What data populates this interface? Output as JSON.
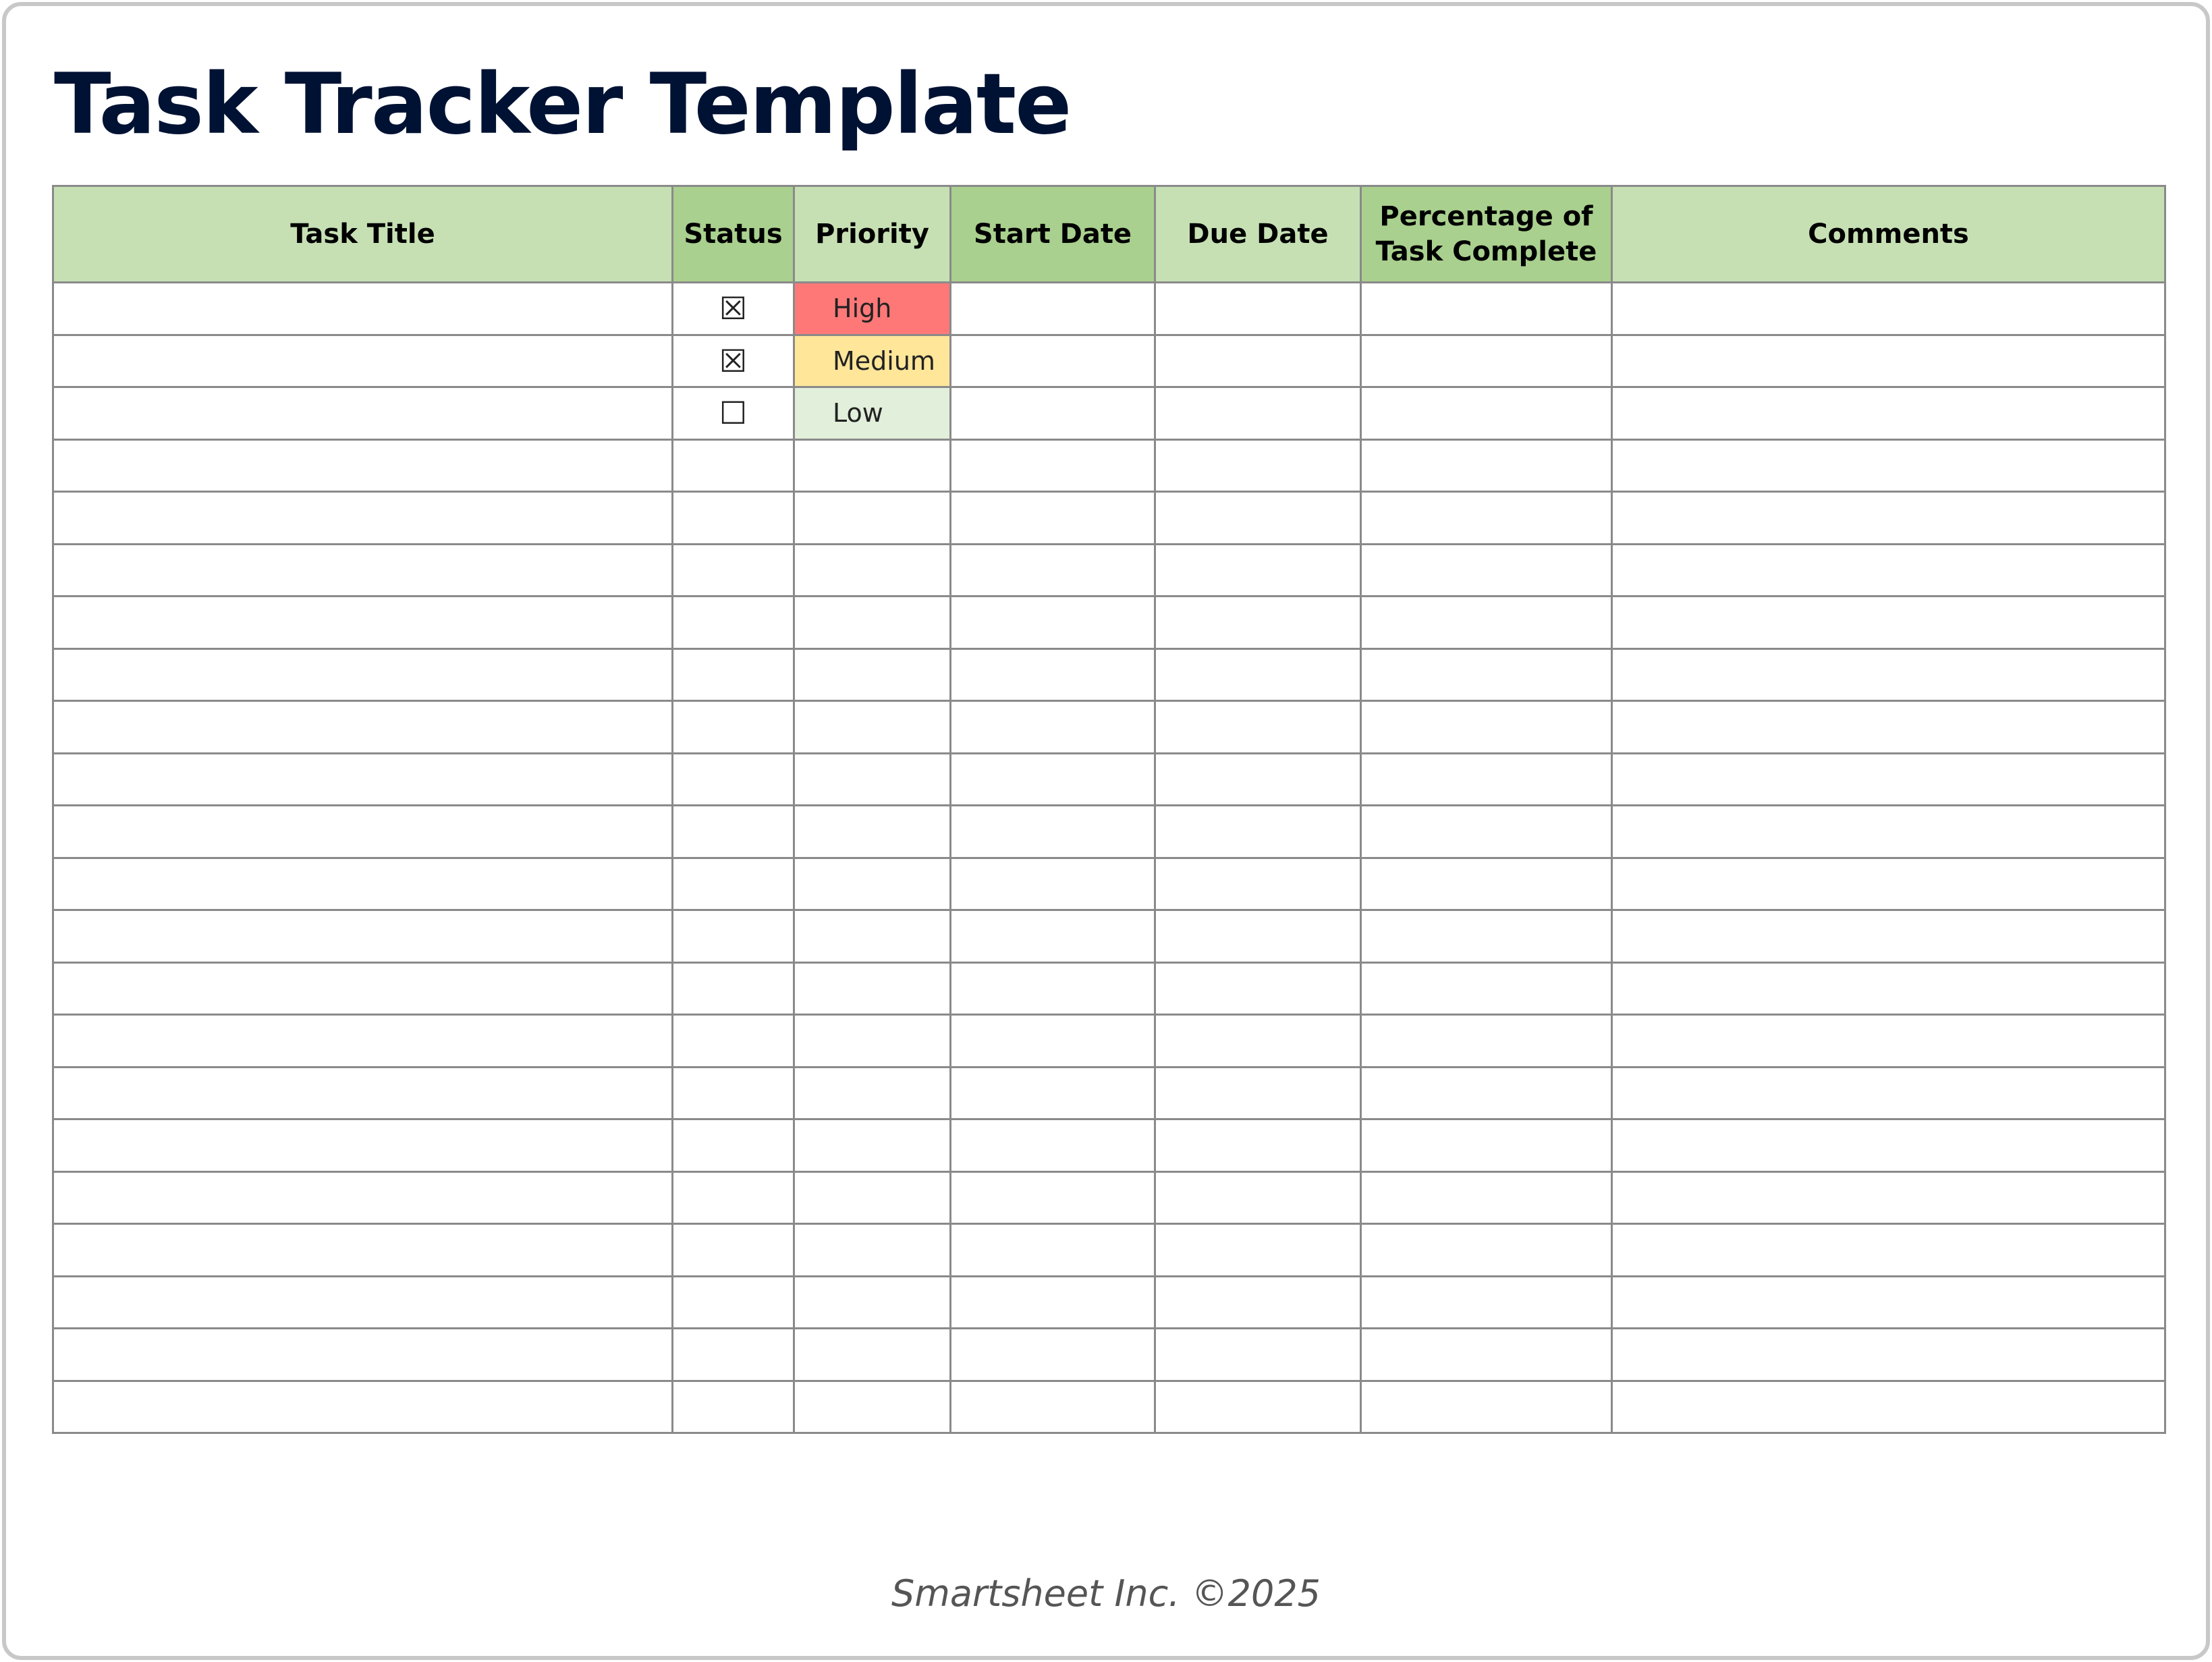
{
  "title": "Task Tracker Template",
  "table": {
    "headers": [
      "Task Title",
      "Status",
      "Priority",
      "Start Date",
      "Due Date",
      "Percentage of Task Complete",
      "Comments"
    ],
    "rows": [
      {
        "status": "☒",
        "priority": "High",
        "priority_color": "#ff7878"
      },
      {
        "status": "☒",
        "priority": "Medium",
        "priority_color": "#ffe699"
      },
      {
        "status": "☐",
        "priority": "Low",
        "priority_color": "#e2efda"
      },
      {},
      {},
      {},
      {},
      {},
      {},
      {},
      {},
      {},
      {},
      {},
      {},
      {},
      {},
      {},
      {},
      {},
      {},
      {}
    ]
  },
  "colors": {
    "header_light": "#c6e0b4",
    "header_dark": "#a9d08e",
    "title": "#001233"
  },
  "footer": "Smartsheet Inc. ©2025"
}
